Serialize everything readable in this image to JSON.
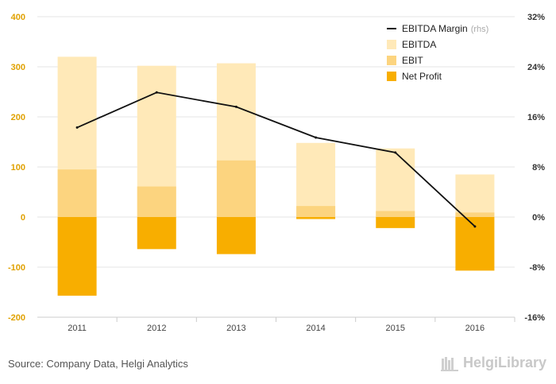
{
  "chart_data": {
    "type": "bar",
    "categories": [
      "2011",
      "2012",
      "2013",
      "2014",
      "2015",
      "2016"
    ],
    "series": [
      {
        "name": "EBITDA",
        "values": [
          320,
          302,
          307,
          148,
          137,
          85
        ],
        "color": "#ffe9b8"
      },
      {
        "name": "EBIT",
        "values": [
          95,
          61,
          113,
          22,
          12,
          9
        ],
        "color": "#fcd47f"
      },
      {
        "name": "Net Profit",
        "values": [
          -157,
          -64,
          -74,
          -4,
          -22,
          -107
        ],
        "color": "#f8ae00"
      },
      {
        "name": "EBITDA Margin",
        "type": "line",
        "axis": "right",
        "values": [
          14.3,
          19.9,
          17.6,
          12.7,
          10.3,
          -1.5
        ],
        "color": "#111111"
      }
    ],
    "legend": [
      {
        "label": "EBITDA Margin",
        "suffix": "(rhs)"
      },
      {
        "label": "EBITDA"
      },
      {
        "label": "EBIT"
      },
      {
        "label": "Net Profit"
      }
    ],
    "left_ticks": [
      "400",
      "300",
      "200",
      "100",
      "0",
      "-100",
      "-200"
    ],
    "right_ticks": [
      "32%",
      "24%",
      "16%",
      "8%",
      "0%",
      "-8%",
      "-16%"
    ],
    "ylim": [
      -200,
      400
    ],
    "ylim_right": [
      -16,
      32
    ],
    "legend_position": "top-right"
  },
  "footer": {
    "source": "Source: Company Data, Helgi Analytics",
    "brand_name": "HelgiLibrary"
  }
}
